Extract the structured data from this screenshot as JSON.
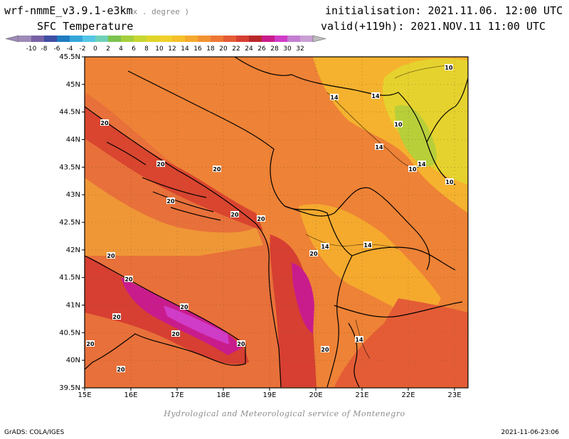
{
  "header": {
    "model": "wrf-nmmE_v3.9.1-e3km",
    "units": "x . degree )",
    "variable": "SFC Temperature",
    "initialisation": "initialisation: 2021.11.06. 12:00 UTC",
    "valid": "valid(+119h): 2021.NOV.11 11:00 UTC"
  },
  "colorbar": {
    "labels": [
      "-10",
      "-8",
      "-6",
      "-4",
      "-2",
      "0",
      "2",
      "4",
      "6",
      "8",
      "10",
      "12",
      "14",
      "16",
      "18",
      "20",
      "22",
      "24",
      "26",
      "28",
      "30",
      "32"
    ],
    "colors": [
      "#9e8ab8",
      "#7862a6",
      "#3f4fa3",
      "#1f7cc1",
      "#35a6d8",
      "#55c5e6",
      "#6fd1b8",
      "#7dc34f",
      "#a5cf3d",
      "#c6d631",
      "#e0d52a",
      "#f0d02a",
      "#f5c02a",
      "#f5aa2e",
      "#f39233",
      "#ee7836",
      "#e45c36",
      "#d63f32",
      "#b8282b",
      "#c91c8c",
      "#d03cc8",
      "#c37ed2",
      "#c9a0d4"
    ]
  },
  "map": {
    "lat_labels": [
      "45.5N",
      "45N",
      "44.5N",
      "44N",
      "43.5N",
      "43N",
      "42.5N",
      "42N",
      "41.5N",
      "41N",
      "40.5N",
      "40N",
      "39.5N"
    ],
    "lon_labels": [
      "15E",
      "16E",
      "17E",
      "18E",
      "19E",
      "20E",
      "21E",
      "22E",
      "23E"
    ],
    "contour_labels": [
      "10",
      "14",
      "14",
      "10",
      "14",
      "10",
      "14",
      "10",
      "20",
      "20",
      "20",
      "20",
      "20",
      "20",
      "20",
      "14",
      "20",
      "14",
      "20",
      "20",
      "20",
      "20",
      "20",
      "20",
      "20",
      "14",
      "20"
    ]
  },
  "footer": {
    "credit": "Hydrological and Meteorological service of Montenegro",
    "software": "GrADS: COLA/IGES",
    "timestamp": "2021-11-06-23:06"
  }
}
